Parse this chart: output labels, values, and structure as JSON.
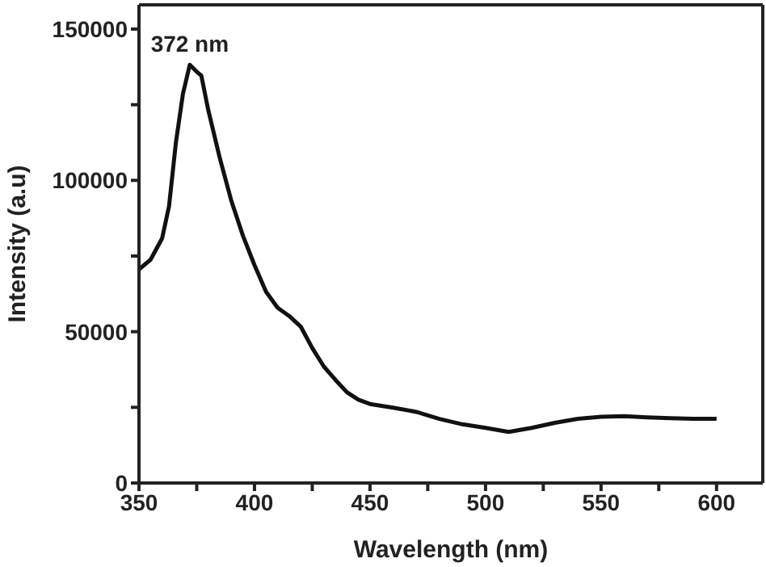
{
  "chart_data": {
    "type": "line",
    "xlabel": "Wavelength (nm)",
    "ylabel": "Intensity (a.u)",
    "x": [
      350,
      355,
      360,
      363,
      366,
      369,
      372,
      375,
      377,
      380,
      385,
      390,
      395,
      400,
      405,
      410,
      415,
      420,
      425,
      430,
      435,
      440,
      445,
      450,
      460,
      470,
      480,
      490,
      500,
      510,
      520,
      530,
      540,
      550,
      560,
      570,
      580,
      590,
      600
    ],
    "series": [
      {
        "color": "#111111",
        "values": [
          70600,
          73800,
          80800,
          91400,
          112600,
          128500,
          138200,
          135900,
          134600,
          123200,
          107300,
          93200,
          81700,
          72000,
          63200,
          57900,
          55200,
          51700,
          44600,
          38500,
          34100,
          30000,
          27500,
          26100,
          24900,
          23500,
          21200,
          19400,
          18200,
          16900,
          18200,
          19900,
          21200,
          21900,
          22100,
          21700,
          21400,
          21200,
          21200
        ]
      }
    ],
    "annotations": [
      {
        "text": "372 nm",
        "x": 372,
        "y": 138200
      }
    ],
    "xlim": [
      350,
      620
    ],
    "xticks": [
      350,
      {
        "value": 375,
        "label": null
      },
      400,
      {
        "value": 425,
        "label": null
      },
      450,
      {
        "value": 475,
        "label": null
      },
      500,
      {
        "value": 525,
        "label": null
      },
      550,
      {
        "value": 575,
        "label": null
      },
      600
    ],
    "ylim": [
      0,
      158000
    ],
    "yticks": [
      0,
      {
        "value": 25000,
        "label": null
      },
      50000,
      {
        "value": 75000,
        "label": null
      },
      100000,
      {
        "value": 125000,
        "label": null
      },
      150000
    ],
    "grid": false,
    "legend": false,
    "marker": "none",
    "line_style": "solid"
  }
}
